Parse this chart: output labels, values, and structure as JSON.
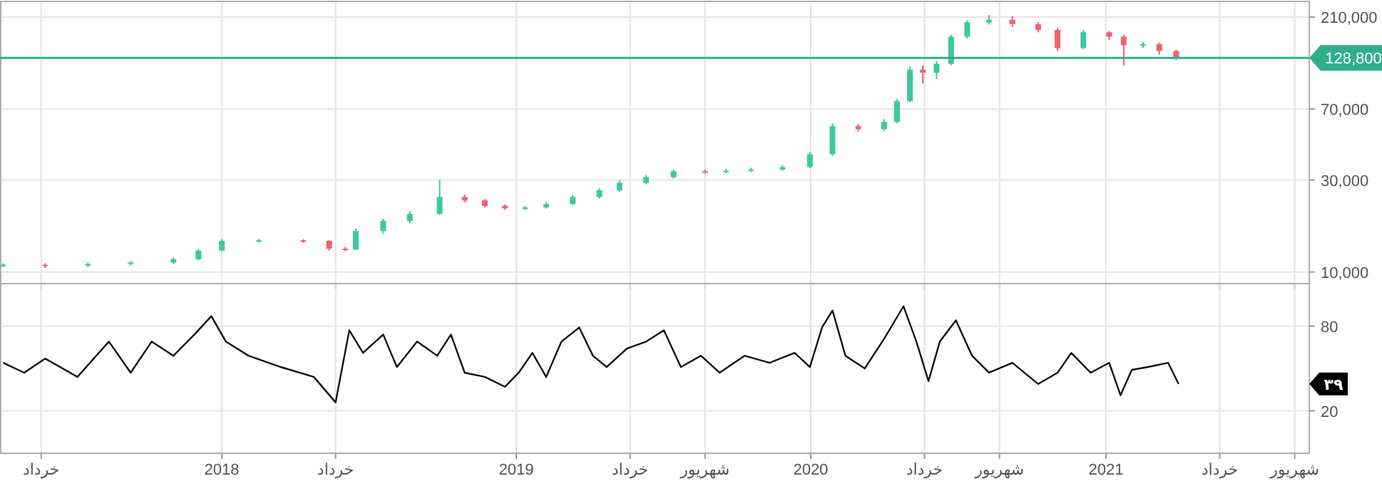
{
  "chart_data": [
    {
      "type": "candlestick",
      "log": true,
      "grid": true,
      "tick_labels": "y",
      "x": [
        "2017-04-05",
        "2017-05-27",
        "2017-07-19",
        "2017-09-10",
        "2017-11-02",
        "2017-12-03",
        "2018-01-01",
        "2018-02-16",
        "2018-04-12",
        "2018-05-14",
        "2018-06-03",
        "2018-06-16",
        "2018-07-20",
        "2018-08-22",
        "2018-09-28",
        "2018-10-29",
        "2018-11-23",
        "2018-12-18",
        "2019-01-12",
        "2019-02-07",
        "2019-03-12",
        "2019-04-14",
        "2019-05-09",
        "2019-06-11",
        "2019-07-15",
        "2019-08-23",
        "2019-09-18",
        "2019-10-19",
        "2019-11-27",
        "2019-12-31",
        "2020-01-28",
        "2020-02-29",
        "2020-04-01",
        "2020-04-17",
        "2020-05-03",
        "2020-05-19",
        "2020-06-05",
        "2020-06-23",
        "2020-07-13",
        "2020-08-09",
        "2020-09-07",
        "2020-10-09",
        "2020-11-02",
        "2020-12-04",
        "2021-01-05",
        "2021-01-23",
        "2021-02-16",
        "2021-03-08",
        "2021-03-29"
      ],
      "ohlc": [
        [
          10800,
          11100,
          10600,
          10900
        ],
        [
          10900,
          11100,
          10500,
          10800
        ],
        [
          10800,
          11200,
          10600,
          11000
        ],
        [
          11000,
          11400,
          10800,
          11200
        ],
        [
          11200,
          11900,
          11000,
          11650
        ],
        [
          11650,
          13200,
          11500,
          12900
        ],
        [
          12900,
          14800,
          12800,
          14500
        ],
        [
          14500,
          14900,
          14200,
          14600
        ],
        [
          14600,
          14800,
          14200,
          14500
        ],
        [
          14500,
          14600,
          12900,
          13200
        ],
        [
          13200,
          13500,
          12800,
          13100
        ],
        [
          13100,
          16800,
          13000,
          16300
        ],
        [
          16300,
          18900,
          15800,
          18400
        ],
        [
          18400,
          20600,
          17900,
          20000
        ],
        [
          20000,
          30000,
          19800,
          24500
        ],
        [
          24500,
          25200,
          23000,
          23500
        ],
        [
          23500,
          23900,
          21600,
          22000
        ],
        [
          22000,
          22400,
          21000,
          21400
        ],
        [
          21400,
          22000,
          21000,
          21600
        ],
        [
          21600,
          23000,
          21300,
          22500
        ],
        [
          22500,
          25000,
          22200,
          24500
        ],
        [
          24500,
          27200,
          24000,
          26500
        ],
        [
          26500,
          29800,
          26000,
          29000
        ],
        [
          29000,
          31800,
          28500,
          31000
        ],
        [
          31000,
          34000,
          30500,
          33300
        ],
        [
          33300,
          34000,
          32400,
          33000
        ],
        [
          33000,
          34300,
          32500,
          33500
        ],
        [
          33500,
          34800,
          33000,
          34000
        ],
        [
          34000,
          35800,
          33500,
          35000
        ],
        [
          35000,
          42000,
          34500,
          40800
        ],
        [
          40800,
          59000,
          40000,
          57000
        ],
        [
          57000,
          58500,
          53500,
          55000
        ],
        [
          55000,
          62000,
          54000,
          60000
        ],
        [
          60000,
          79000,
          59000,
          77000
        ],
        [
          77000,
          116000,
          76000,
          112000
        ],
        [
          112000,
          118000,
          95000,
          108000
        ],
        [
          108000,
          124000,
          100000,
          120000
        ],
        [
          120000,
          170000,
          118000,
          166000
        ],
        [
          166000,
          202000,
          162000,
          197000
        ],
        [
          197000,
          215000,
          192000,
          203000
        ],
        [
          203000,
          212000,
          186000,
          193000
        ],
        [
          193000,
          198000,
          175000,
          180000
        ],
        [
          180000,
          184000,
          140000,
          145000
        ],
        [
          145000,
          180000,
          143000,
          175000
        ],
        [
          175000,
          178000,
          160000,
          166000
        ],
        [
          166000,
          170000,
          118000,
          150000
        ],
        [
          150000,
          156000,
          145000,
          152000
        ],
        [
          152000,
          155000,
          134000,
          140000
        ],
        [
          140000,
          142000,
          126000,
          128800
        ]
      ],
      "colors": [
        "#3cc8a0",
        "#f0606e",
        "#3cc8a0",
        "#3cc8a0",
        "#3cc8a0",
        "#3cc8a0",
        "#3cc8a0",
        "#3cc8a0",
        "#f0606e",
        "#f0606e",
        "#f0606e",
        "#3cc8a0",
        "#3cc8a0",
        "#3cc8a0",
        "#3cc8a0",
        "#f0606e",
        "#f0606e",
        "#f0606e",
        "#3cc8a0",
        "#3cc8a0",
        "#3cc8a0",
        "#3cc8a0",
        "#3cc8a0",
        "#3cc8a0",
        "#3cc8a0",
        "#f0606e",
        "#3cc8a0",
        "#3cc8a0",
        "#3cc8a0",
        "#3cc8a0",
        "#3cc8a0",
        "#f0606e",
        "#3cc8a0",
        "#3cc8a0",
        "#3cc8a0",
        "#f0606e",
        "#3cc8a0",
        "#3cc8a0",
        "#3cc8a0",
        "#3cc8a0",
        "#f0606e",
        "#f0606e",
        "#f0606e",
        "#3cc8a0",
        "#f0606e",
        "#f0606e",
        "#3cc8a0",
        "#f0606e",
        "#f0606e"
      ],
      "xlim": [
        "2017-04-01",
        "2021-09-10"
      ],
      "xticks": [
        {
          "value": "2017-05-22",
          "label": null
        },
        {
          "value": "2018-01-01",
          "label": null
        },
        {
          "value": "2018-05-22",
          "label": null
        },
        {
          "value": "2019-01-01",
          "label": null
        },
        {
          "value": "2019-05-22",
          "label": null
        },
        {
          "value": "2019-08-23",
          "label": null
        },
        {
          "value": "2020-01-01",
          "label": null
        },
        {
          "value": "2020-05-21",
          "label": null
        },
        {
          "value": "2020-08-22",
          "label": null
        },
        {
          "value": "2021-01-01",
          "label": null
        },
        {
          "value": "2021-05-22",
          "label": null
        },
        {
          "value": "2021-08-23",
          "label": null
        }
      ],
      "ylim": [
        8700,
        253000
      ],
      "yticks": [
        {
          "value": 10000,
          "label": "10,000"
        },
        {
          "value": 30000,
          "label": "30,000"
        },
        {
          "value": 70000,
          "label": "70,000"
        },
        {
          "value": 210000,
          "label": "210,000"
        }
      ],
      "ref_lines": [
        {
          "axis": "y",
          "value": 128800,
          "label": "128,800",
          "color": "#2fae8c"
        }
      ]
    },
    {
      "type": "line",
      "grid": true,
      "series": [
        {
          "color": "#111111",
          "x": [
            "2017-04-05",
            "2017-05-01",
            "2017-05-27",
            "2017-07-06",
            "2017-08-14",
            "2017-09-10",
            "2017-10-06",
            "2017-11-02",
            "2017-11-28",
            "2017-12-19",
            "2018-01-06",
            "2018-02-03",
            "2018-03-15",
            "2018-04-25",
            "2018-05-22",
            "2018-06-08",
            "2018-06-25",
            "2018-07-20",
            "2018-08-06",
            "2018-08-31",
            "2018-09-25",
            "2018-10-12",
            "2018-10-29",
            "2018-11-23",
            "2018-12-18",
            "2019-01-04",
            "2019-01-21",
            "2019-02-07",
            "2019-02-26",
            "2019-03-20",
            "2019-04-06",
            "2019-04-23",
            "2019-05-18",
            "2019-06-11",
            "2019-07-03",
            "2019-07-24",
            "2019-08-18",
            "2019-09-10",
            "2019-10-11",
            "2019-11-11",
            "2019-12-12",
            "2019-12-31",
            "2020-01-15",
            "2020-01-28",
            "2020-02-13",
            "2020-03-08",
            "2020-04-01",
            "2020-04-25",
            "2020-05-11",
            "2020-05-26",
            "2020-06-09",
            "2020-06-29",
            "2020-07-19",
            "2020-08-09",
            "2020-09-07",
            "2020-10-09",
            "2020-11-02",
            "2020-11-19",
            "2020-12-13",
            "2021-01-05",
            "2021-01-19",
            "2021-02-02",
            "2021-02-22",
            "2021-03-19",
            "2021-04-01"
          ],
          "values": [
            54,
            47,
            57,
            44,
            69,
            47,
            69,
            59,
            74,
            87,
            69,
            59,
            51,
            44,
            26,
            77,
            61,
            74,
            51,
            69,
            59,
            74,
            47,
            44,
            37,
            47,
            61,
            44,
            69,
            79,
            59,
            51,
            64,
            69,
            77,
            51,
            59,
            47,
            59,
            54,
            61,
            51,
            79,
            91,
            59,
            50,
            71,
            94,
            69,
            41,
            69,
            84,
            59,
            47,
            54,
            39,
            47,
            61,
            47,
            54,
            31,
            49,
            51,
            54,
            39
          ]
        }
      ],
      "xlim": [
        "2017-04-01",
        "2021-09-10"
      ],
      "xticks": [
        {
          "value": "2017-05-22",
          "label": "خرداد"
        },
        {
          "value": "2018-01-01",
          "label": "2018"
        },
        {
          "value": "2018-05-22",
          "label": "خرداد"
        },
        {
          "value": "2019-01-01",
          "label": "2019"
        },
        {
          "value": "2019-05-22",
          "label": "خرداد"
        },
        {
          "value": "2019-08-23",
          "label": "شهریور"
        },
        {
          "value": "2020-01-01",
          "label": "2020"
        },
        {
          "value": "2020-05-21",
          "label": "خرداد"
        },
        {
          "value": "2020-08-22",
          "label": "شهریور"
        },
        {
          "value": "2021-01-01",
          "label": "2021"
        },
        {
          "value": "2021-05-22",
          "label": "خرداد"
        },
        {
          "value": "2021-08-23",
          "label": "شهریور"
        }
      ],
      "ylim": [
        -10,
        110
      ],
      "yticks": [
        20,
        80
      ],
      "annotations": [
        "۳۹"
      ]
    }
  ]
}
